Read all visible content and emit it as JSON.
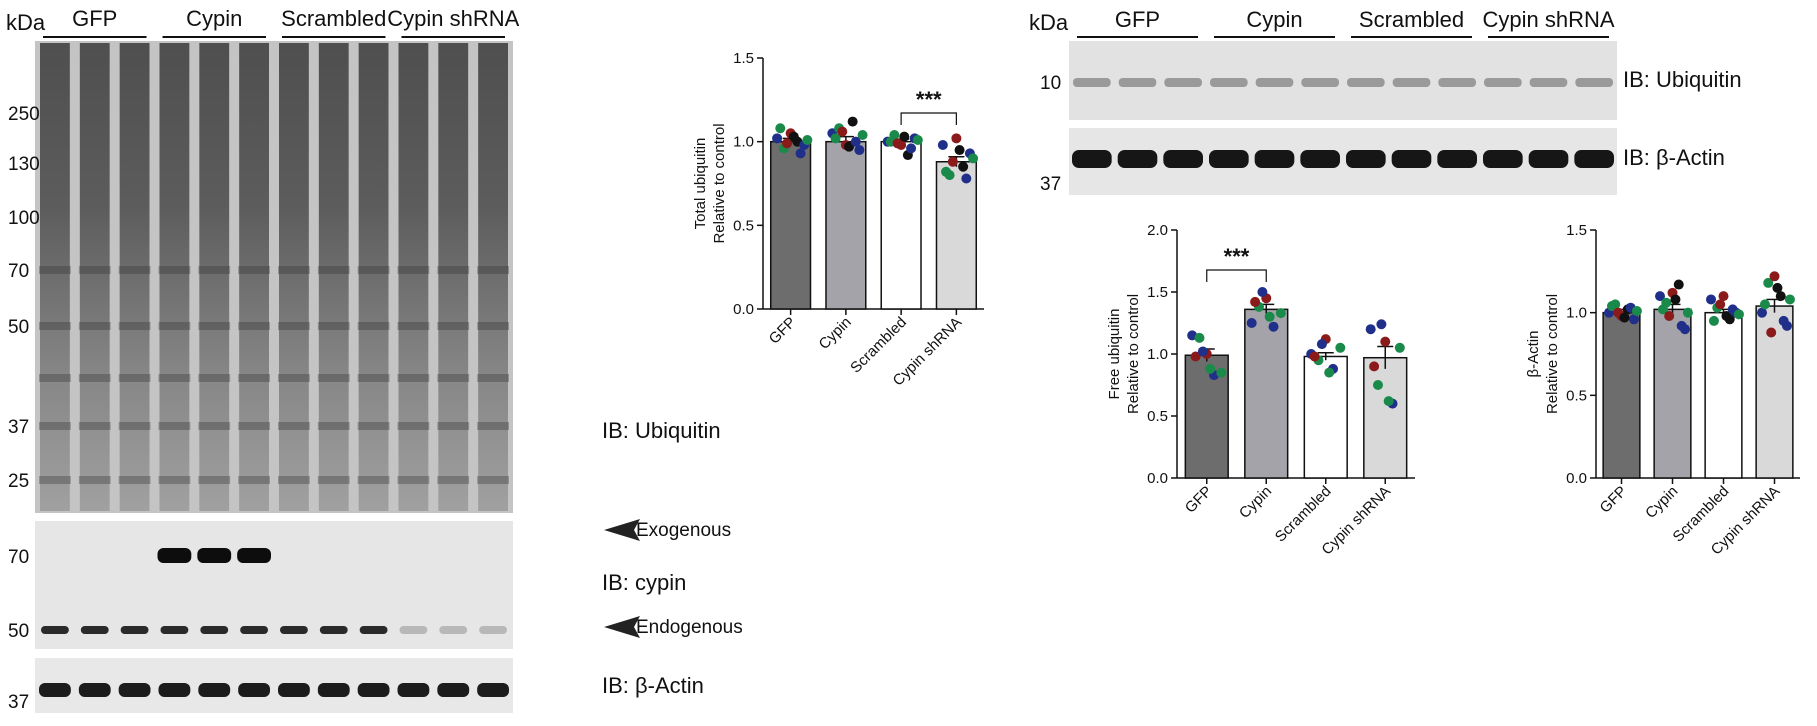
{
  "blots": [
    {
      "kda": "kDa",
      "groups": [
        "GFP",
        "Cypin",
        "Scrambled",
        "Cypin shRNA"
      ],
      "markers": [
        250,
        130,
        100,
        70,
        50,
        37,
        25,
        70,
        50,
        37
      ],
      "labels": [
        "IB: Ubiquitin",
        "IB: cypin",
        "IB: β-Actin"
      ],
      "arrows": [
        "Exogenous",
        "Endogenous"
      ]
    },
    {
      "kda": "kDa",
      "groups": [
        "GFP",
        "Cypin",
        "Scrambled",
        "Cypin shRNA"
      ],
      "markers": [
        10,
        37
      ],
      "labels": [
        "IB: Ubiquitin",
        "IB: β-Actin"
      ]
    }
  ],
  "chart_data": [
    {
      "type": "bar",
      "ylabel": [
        "Total ubiquitin",
        "Relative to control"
      ],
      "categories": [
        "GFP",
        "Cypin",
        "Scrambled",
        "Cypin shRNA"
      ],
      "values": [
        1.0,
        1.0,
        1.0,
        0.88
      ],
      "errors": [
        0.02,
        0.03,
        0.015,
        0.03
      ],
      "colors": [
        "#6d6d6d",
        "#a3a3a9",
        "#ffffff",
        "#d9d9d9"
      ],
      "points": [
        [
          1.02,
          0.96,
          1.05,
          1.0,
          0.98,
          1.08,
          0.99,
          1.03,
          0.93,
          1.01
        ],
        [
          1.05,
          1.08,
          0.98,
          1.12,
          0.95,
          1.02,
          1.06,
          0.97,
          1.0,
          1.04
        ],
        [
          1.0,
          1.04,
          0.98,
          0.92,
          1.02,
          1.0,
          0.99,
          1.03,
          0.96,
          1.01
        ],
        [
          0.98,
          0.8,
          1.02,
          0.85,
          0.93,
          0.82,
          0.88,
          0.95,
          0.78,
          0.9
        ]
      ],
      "point_colors": [
        "#1f2f8a",
        "#1a8a4a",
        "#8b1a1a",
        "#111111",
        "#1f2f8a",
        "#1a8a4a",
        "#8b1a1a",
        "#111111",
        "#1f2f8a",
        "#1a8a4a"
      ],
      "ylim": [
        0,
        1.5
      ],
      "yticks": [
        {
          "value": 0,
          "label": "0.0"
        },
        0.5,
        {
          "value": 1,
          "label": "1.0"
        },
        1.5
      ],
      "annotations": [
        {
          "text": "***",
          "between": [
            2,
            3
          ]
        }
      ]
    },
    {
      "type": "bar",
      "ylabel": [
        "Free ubiquitin",
        "Relative to control"
      ],
      "categories": [
        "GFP",
        "Cypin",
        "Scrambled",
        "Cypin shRNA"
      ],
      "values": [
        0.99,
        1.36,
        0.98,
        0.97
      ],
      "errors": [
        0.05,
        0.04,
        0.03,
        0.09
      ],
      "colors": [
        "#6d6d6d",
        "#a3a3a9",
        "#ffffff",
        "#d9d9d9"
      ],
      "points": [
        [
          1.15,
          1.13,
          1.0,
          0.83,
          0.85,
          0.98,
          1.02,
          0.88
        ],
        [
          1.25,
          1.38,
          1.45,
          1.22,
          1.33,
          1.42,
          1.5,
          1.3
        ],
        [
          1.0,
          0.95,
          1.12,
          0.88,
          1.05,
          0.98,
          1.08,
          0.85
        ],
        [
          1.2,
          0.75,
          1.1,
          0.6,
          1.05,
          0.9,
          1.24,
          0.62
        ]
      ],
      "point_colors": [
        "#1f2f8a",
        "#1a8a4a",
        "#8b1a1a",
        "#1f2f8a",
        "#1a8a4a",
        "#8b1a1a",
        "#1f2f8a",
        "#1a8a4a"
      ],
      "ylim": [
        0,
        2
      ],
      "yticks": [
        {
          "value": 0,
          "label": "0.0"
        },
        0.5,
        {
          "value": 1,
          "label": "1.0"
        },
        1.5,
        {
          "value": 2,
          "label": "2.0"
        }
      ],
      "annotations": [
        {
          "text": "***",
          "between": [
            0,
            1
          ]
        }
      ]
    },
    {
      "type": "bar",
      "ylabel": [
        "β-Actin",
        "Relative to control"
      ],
      "categories": [
        "GFP",
        "Cypin",
        "Scrambled",
        "Cypin shRNA"
      ],
      "values": [
        1.0,
        1.02,
        1.0,
        1.04
      ],
      "errors": [
        0.02,
        0.03,
        0.02,
        0.04
      ],
      "colors": [
        "#6d6d6d",
        "#a3a3a9",
        "#ffffff",
        "#d9d9d9"
      ],
      "points": [
        [
          1.0,
          1.05,
          0.98,
          1.02,
          0.96,
          1.04,
          1.0,
          0.97,
          1.03,
          1.01
        ],
        [
          1.1,
          1.06,
          1.12,
          1.17,
          0.9,
          1.02,
          0.98,
          1.08,
          0.92,
          1.0
        ],
        [
          1.08,
          1.03,
          1.1,
          0.96,
          1.0,
          0.95,
          1.05,
          0.98,
          1.02,
          0.99
        ],
        [
          1.0,
          1.18,
          1.22,
          1.1,
          0.92,
          1.05,
          0.88,
          1.15,
          0.95,
          1.08
        ]
      ],
      "point_colors": [
        "#1f2f8a",
        "#1a8a4a",
        "#8b1a1a",
        "#111111",
        "#1f2f8a",
        "#1a8a4a",
        "#8b1a1a",
        "#111111",
        "#1f2f8a",
        "#1a8a4a"
      ],
      "ylim": [
        0,
        1.5
      ],
      "yticks": [
        {
          "value": 0,
          "label": "0.0"
        },
        0.5,
        {
          "value": 1,
          "label": "1.0"
        },
        1.5
      ],
      "annotations": []
    }
  ]
}
